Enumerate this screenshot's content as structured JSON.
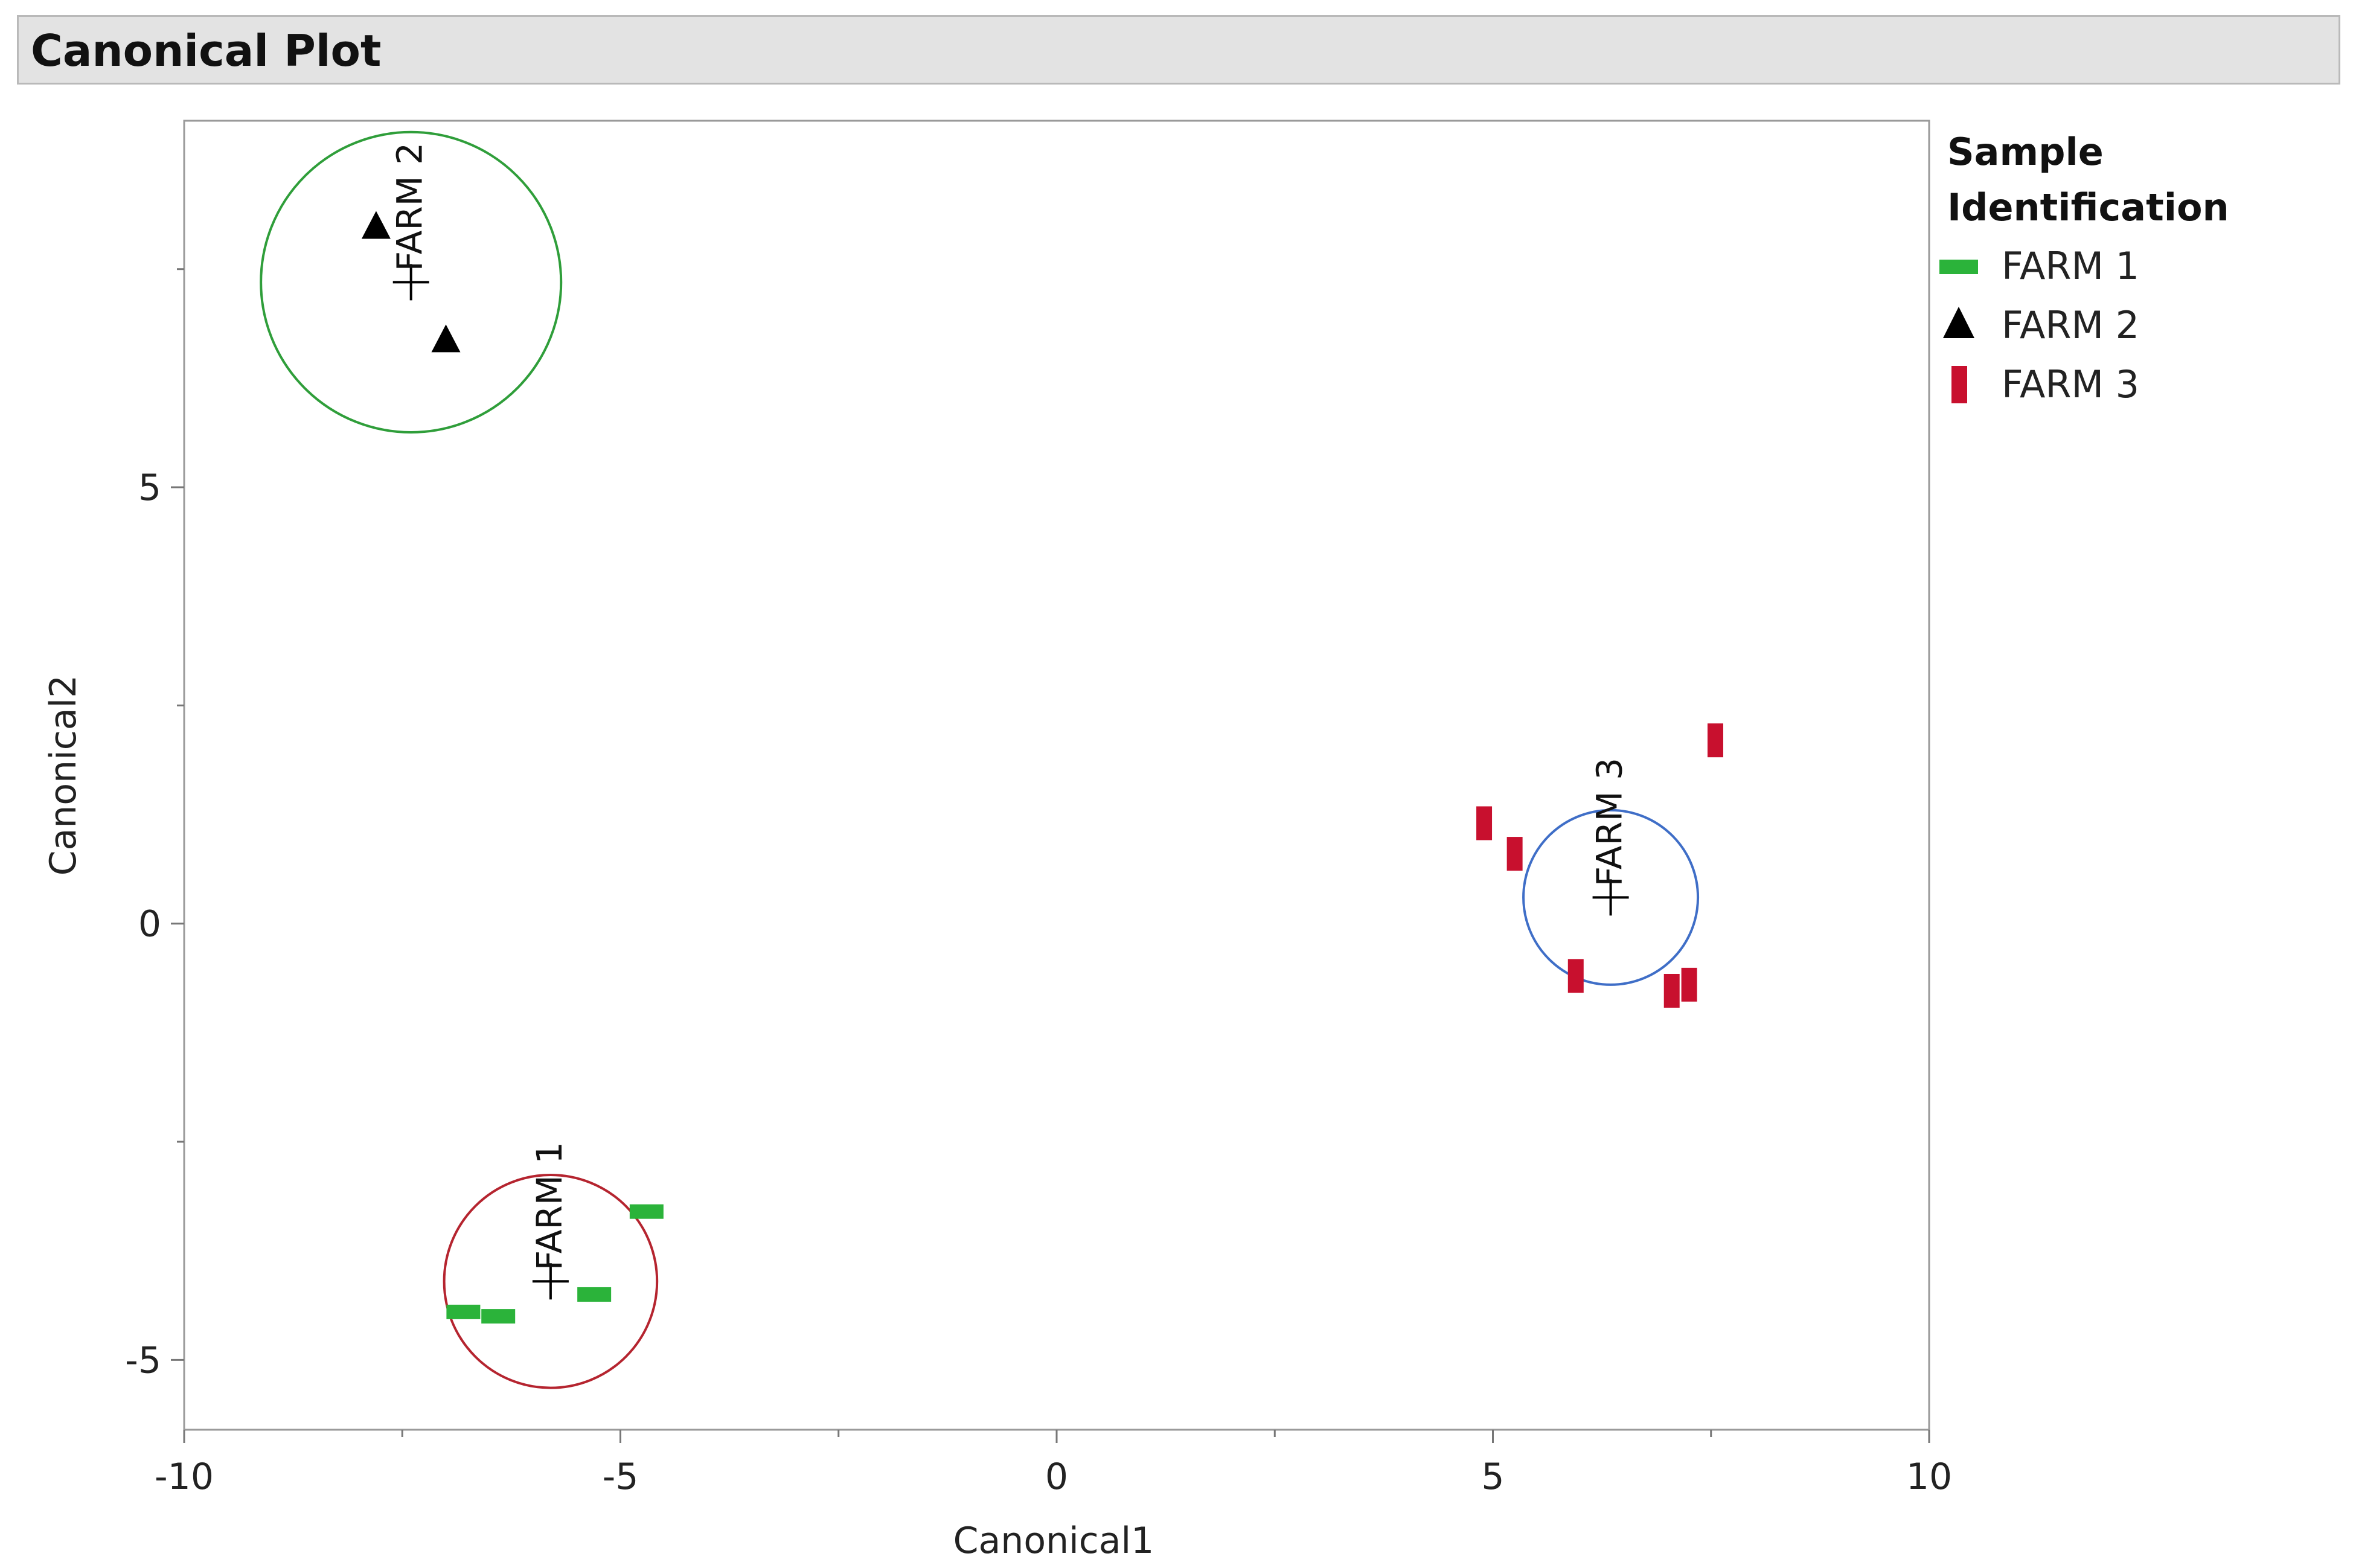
{
  "panel": {
    "title": "Canonical Plot"
  },
  "legend": {
    "title_line1": "Sample",
    "title_line2": "Identification",
    "items": [
      {
        "label": "FARM 1",
        "marker": "green-dash-marker",
        "color": "#2bb33a"
      },
      {
        "label": "FARM 2",
        "marker": "black-triangle-marker",
        "color": "#000000"
      },
      {
        "label": "FARM 3",
        "marker": "red-bar-marker",
        "color": "#c8102e"
      }
    ]
  },
  "chart_data": {
    "type": "scatter",
    "title": "",
    "xlabel": "Canonical1",
    "ylabel": "Canonical2",
    "xlim": [
      -10,
      10
    ],
    "ylim": [
      -5.8,
      9.2
    ],
    "xticks": [
      -10,
      -5,
      0,
      5,
      10
    ],
    "xtick_labels": [
      "-10",
      "-5",
      "0",
      "5",
      "10"
    ],
    "yticks": [
      -5,
      0,
      5
    ],
    "ytick_labels": [
      "-5",
      "0",
      "5"
    ],
    "series": [
      {
        "name": "FARM 1",
        "marker": "dash",
        "color": "#2bb33a",
        "points": [
          [
            -6.8,
            -4.45
          ],
          [
            -6.4,
            -4.5
          ],
          [
            -5.3,
            -4.25
          ],
          [
            -4.7,
            -3.3
          ]
        ]
      },
      {
        "name": "FARM 2",
        "marker": "triangle",
        "color": "#000000",
        "points": [
          [
            -7.8,
            8.0
          ],
          [
            -7.0,
            6.7
          ]
        ]
      },
      {
        "name": "FARM 3",
        "marker": "bar",
        "color": "#c8102e",
        "points": [
          [
            4.9,
            1.15
          ],
          [
            5.25,
            0.8
          ],
          [
            5.95,
            -0.6
          ],
          [
            7.05,
            -0.77
          ],
          [
            7.25,
            -0.7
          ],
          [
            7.55,
            2.1
          ]
        ]
      }
    ],
    "group_means": [
      {
        "label": "FARM 1",
        "x": -5.8,
        "y": -4.1,
        "radius": 1.22,
        "circle_color": "#b5242f"
      },
      {
        "label": "FARM 2",
        "x": -7.4,
        "y": 7.35,
        "radius": 1.72,
        "circle_color": "#2f9e3a"
      },
      {
        "label": "FARM 3",
        "x": 6.35,
        "y": 0.3,
        "radius": 1.0,
        "circle_color": "#3f6ec7"
      }
    ]
  }
}
